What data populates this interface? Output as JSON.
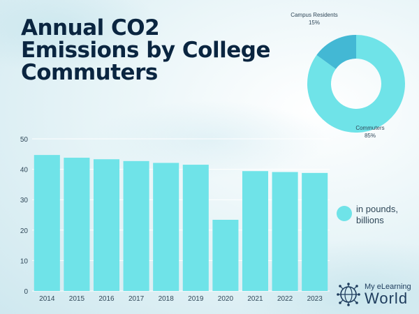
{
  "title": "Annual CO2 Emissions by College Commuters",
  "colors": {
    "bar": "#6fe3e8",
    "donut_main": "#6fe3e8",
    "donut_minor": "#43b8d4",
    "title": "#0a2540",
    "text": "#2e4657"
  },
  "legend": {
    "label": "in pounds, billions"
  },
  "logo": {
    "line1": "My eLearning",
    "line2": "World",
    "icon": "globe-network-icon"
  },
  "chart_data": [
    {
      "type": "bar",
      "categories": [
        "2014",
        "2015",
        "2016",
        "2017",
        "2018",
        "2019",
        "2020",
        "2021",
        "2022",
        "2023"
      ],
      "values": [
        44.7,
        43.8,
        43.3,
        42.7,
        42.1,
        41.5,
        23.4,
        39.4,
        39.1,
        38.8
      ],
      "ylim": [
        0,
        50
      ],
      "yticks": [
        0,
        10,
        20,
        30,
        40,
        50
      ],
      "grid": true,
      "legend": "right"
    },
    {
      "type": "pie",
      "donut": true,
      "slices": [
        {
          "label": "Commuters",
          "value": 85,
          "display": "85%"
        },
        {
          "label": "Campus Residents",
          "value": 15,
          "display": "15%"
        }
      ]
    }
  ]
}
